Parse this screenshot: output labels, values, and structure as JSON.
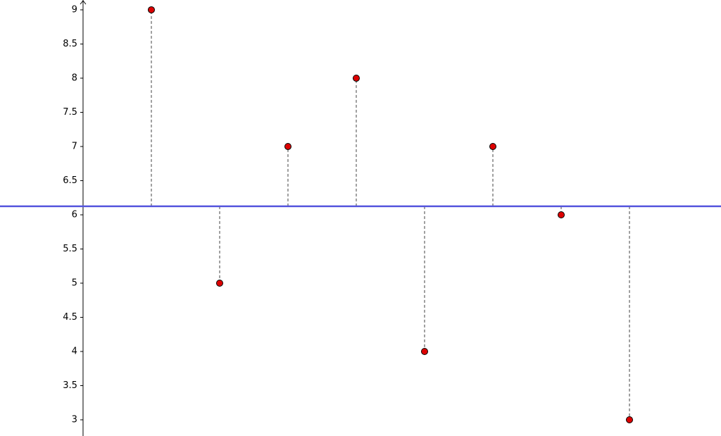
{
  "chart_data": {
    "type": "scatter",
    "x": [
      1,
      2,
      3,
      4,
      5,
      6,
      7,
      8
    ],
    "values": [
      9,
      5,
      7,
      8,
      4,
      7,
      6,
      3
    ],
    "color": "#dd0000",
    "reference_line": {
      "value": 6.125,
      "color": "#5555dd"
    },
    "stem_color": "#808080",
    "xlim": [
      -1.216,
      9.34
    ],
    "ylim": [
      2.763,
      9.144
    ],
    "yticks": [
      3,
      3.5,
      4,
      4.5,
      5,
      5.5,
      6,
      6.5,
      7,
      7.5,
      8,
      8.5,
      9
    ]
  }
}
